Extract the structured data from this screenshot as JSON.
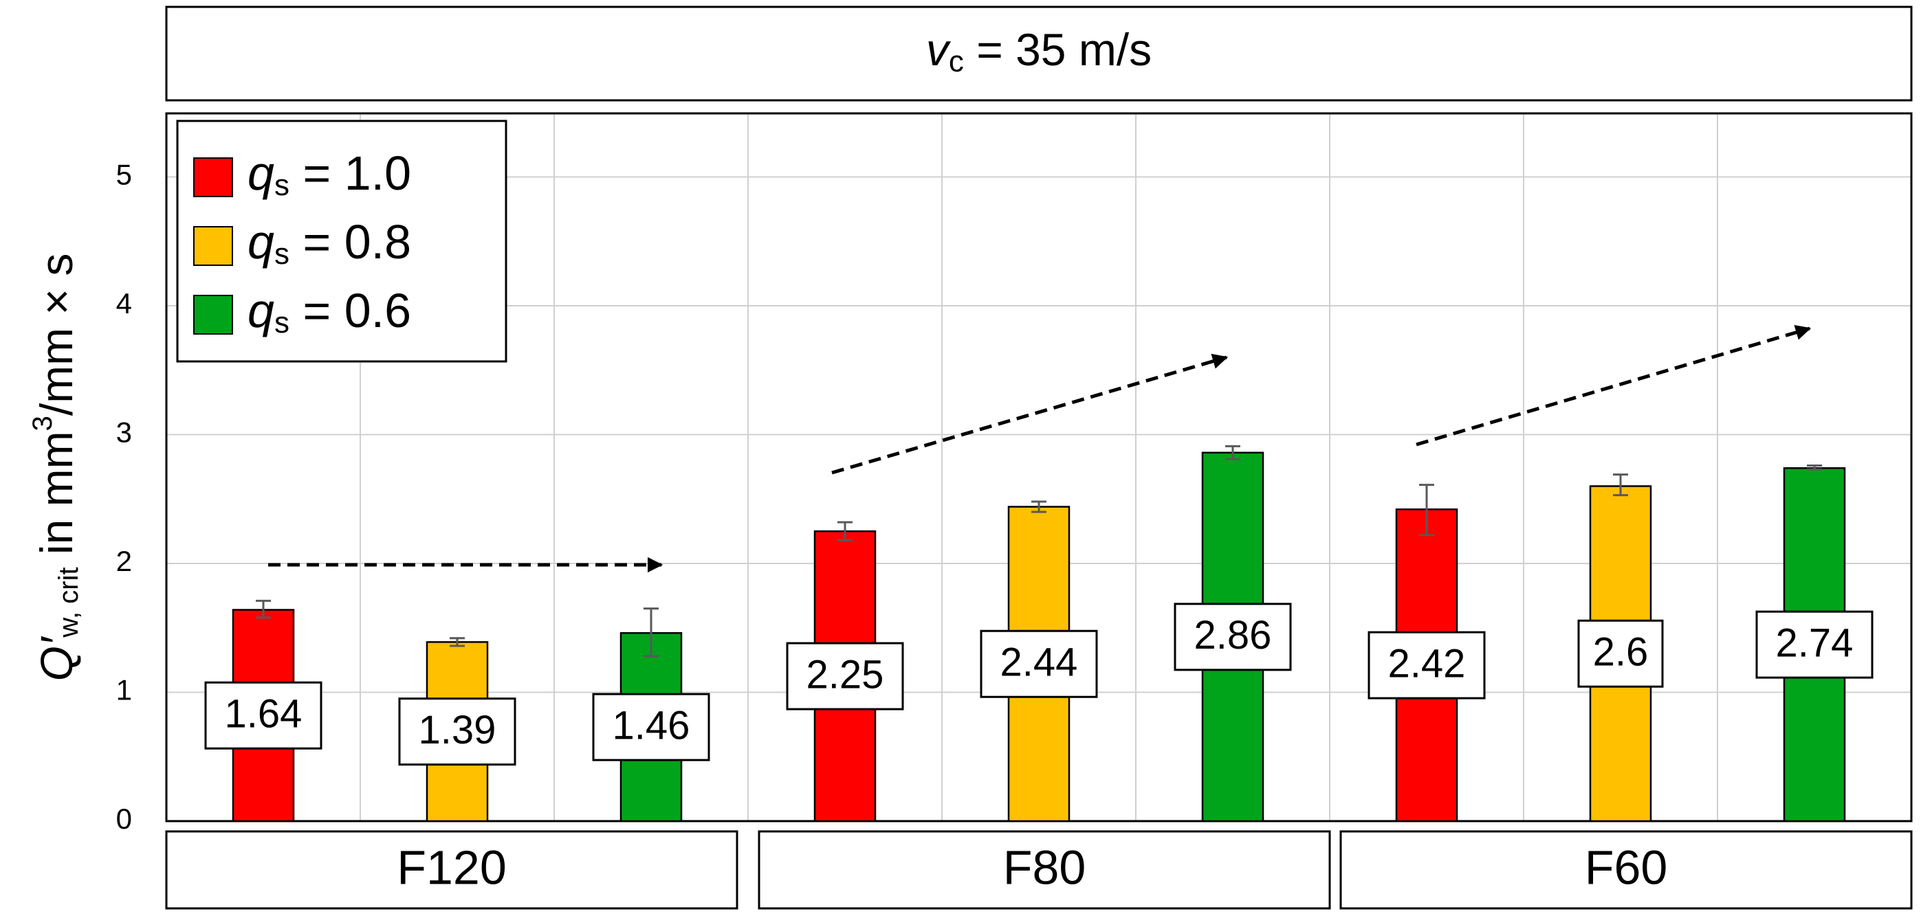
{
  "chart_data": {
    "type": "bar",
    "header": {
      "var": "v",
      "sub": "c",
      "rest": " = 35 m/s"
    },
    "ylabel": {
      "main": "Q′",
      "sub": "w, crit",
      "rest": " in mm",
      "sup": "3",
      "rest2": "/mm × s"
    },
    "ylim": [
      0,
      5.5
    ],
    "yticks": [
      0,
      1,
      2,
      3,
      4,
      5
    ],
    "grid": true,
    "legend_position": "top-left",
    "groups": [
      "F120",
      "F80",
      "F60"
    ],
    "series": [
      {
        "name_var": "q",
        "name_sub": "s",
        "name_rest": " = 1.0",
        "color": "#ff0000",
        "values": [
          1.64,
          2.25,
          2.42
        ],
        "labels": [
          "1.64",
          "2.25",
          "2.42"
        ],
        "err_low": [
          1.58,
          2.18,
          2.22
        ],
        "err_high": [
          1.71,
          2.32,
          2.61
        ]
      },
      {
        "name_var": "q",
        "name_sub": "s",
        "name_rest": " = 0.8",
        "color": "#ffc000",
        "values": [
          1.39,
          2.44,
          2.6
        ],
        "labels": [
          "1.39",
          "2.44",
          "2.6"
        ],
        "err_low": [
          1.36,
          2.4,
          2.53
        ],
        "err_high": [
          1.42,
          2.48,
          2.69
        ]
      },
      {
        "name_var": "q",
        "name_sub": "s",
        "name_rest": " = 0.6",
        "color": "#00a41a",
        "values": [
          1.46,
          2.86,
          2.74
        ],
        "labels": [
          "1.46",
          "2.86",
          "2.74"
        ],
        "err_low": [
          1.28,
          2.81,
          2.73
        ],
        "err_high": [
          1.65,
          2.91,
          2.76
        ]
      }
    ]
  }
}
